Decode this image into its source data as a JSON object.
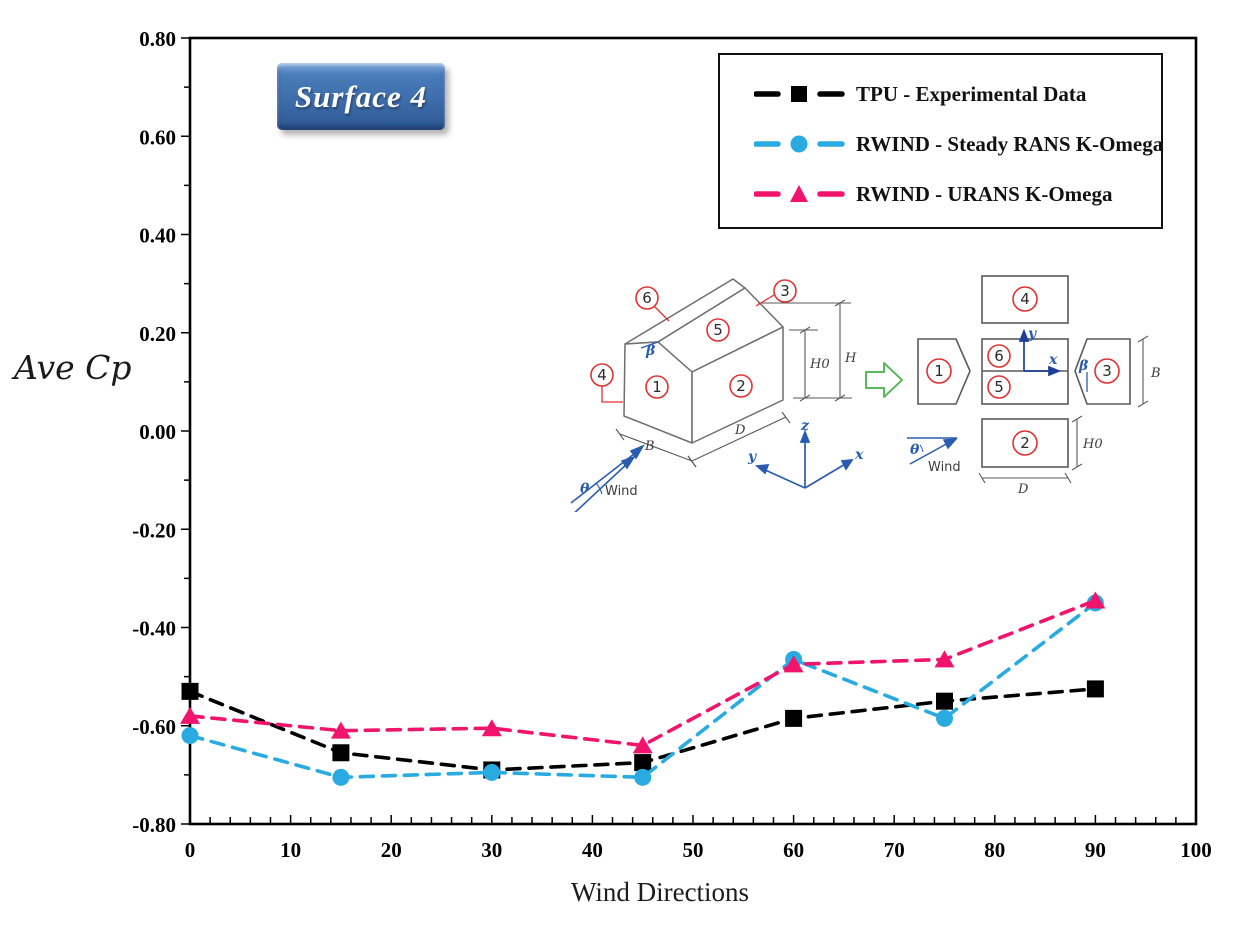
{
  "chart": {
    "surface_label": "Surface 4",
    "xlabel": "Wind Directions",
    "ylabel": "Ave Cp"
  },
  "chart_data": {
    "type": "line",
    "title": "Surface 4",
    "xlabel": "Wind Directions",
    "ylabel": "Ave Cp",
    "xlim": [
      0,
      100
    ],
    "ylim": [
      -0.8,
      0.8
    ],
    "x_tick_step": 10,
    "x_minor_tick_step": 2,
    "y_tick_step": 0.2,
    "y_minor_tick_step": 0.1,
    "grid": false,
    "legend_position": "top-right",
    "line_style": "dashed",
    "x": [
      0,
      15,
      30,
      45,
      60,
      75,
      90
    ],
    "series": [
      {
        "name": "TPU - Experimental Data",
        "marker": "square",
        "color": "#000000",
        "values": [
          -0.53,
          -0.655,
          -0.69,
          -0.675,
          -0.585,
          -0.55,
          -0.525
        ]
      },
      {
        "name": "RWIND - Steady RANS K-Omega",
        "marker": "circle",
        "color": "#29ABE2",
        "values": [
          -0.62,
          -0.705,
          -0.695,
          -0.705,
          -0.465,
          -0.585,
          -0.35
        ]
      },
      {
        "name": "RWIND - URANS K-Omega",
        "marker": "triangle",
        "color": "#F0146C",
        "values": [
          -0.58,
          -0.61,
          -0.605,
          -0.64,
          -0.475,
          -0.465,
          -0.345
        ]
      }
    ]
  },
  "diagram": {
    "surfaces": [
      "1",
      "2",
      "3",
      "4",
      "5",
      "6"
    ],
    "labels": {
      "B": "B",
      "D": "D",
      "H": "H",
      "H0": "H0",
      "beta": "β",
      "theta": "θ",
      "wind": "Wind",
      "x": "x",
      "y": "y",
      "z": "z"
    },
    "colors": {
      "outline": "#6e6e6e",
      "callout_red": "#E03131",
      "blue": "#2a5cae",
      "green_arrow": "#5CB85C"
    }
  }
}
